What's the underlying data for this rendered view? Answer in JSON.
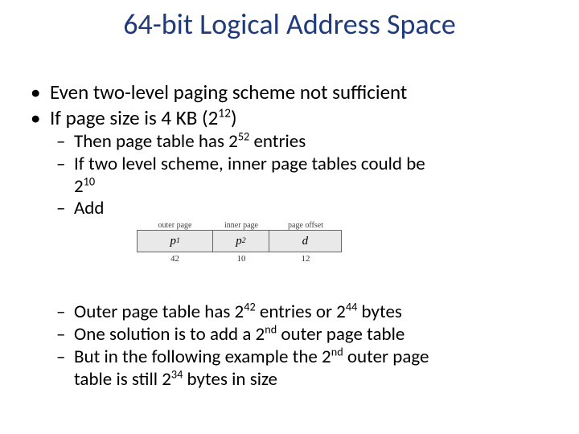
{
  "title": "64-bit Logical Address Space",
  "bullets": {
    "b1": "Even two-level paging scheme not sufficient",
    "b2_pre": "If page size is 4 KB (2",
    "b2_sup": "12",
    "b2_post": ")",
    "s1_pre": "Then page table has 2",
    "s1_sup": "52",
    "s1_post": " entries",
    "s2": "If two level scheme, inner page tables could be",
    "s2b_pre": "2",
    "s2b_sup": "10",
    "s3": "Add",
    "s4_pre": "Outer page table has 2",
    "s4_sup1": "42",
    "s4_mid": " entries or 2",
    "s4_sup2": "44",
    "s4_post": " bytes",
    "s5_pre": "One solution is to add a 2",
    "s5_sup": "nd",
    "s5_post": " outer page table",
    "s6_pre": "But in the following example the 2",
    "s6_sup": "nd",
    "s6_post": " outer page",
    "s6b_pre": "table is still 2",
    "s6b_sup": "34",
    "s6b_post": " bytes in size"
  },
  "diagram": {
    "headers": {
      "h1": "outer page",
      "h2": "inner page",
      "h3": "page offset"
    },
    "cells": {
      "c1": "p",
      "c1sub": "1",
      "c2": "p",
      "c2sub": "2",
      "c3": "d"
    },
    "widths": {
      "w1": 95,
      "w2": 70,
      "w3": 90
    },
    "nums": {
      "n1": "42",
      "n2": "10",
      "n3": "12"
    },
    "colors": {
      "border": "#666666",
      "fill": "#e9e9e9",
      "label": "#444444"
    }
  }
}
